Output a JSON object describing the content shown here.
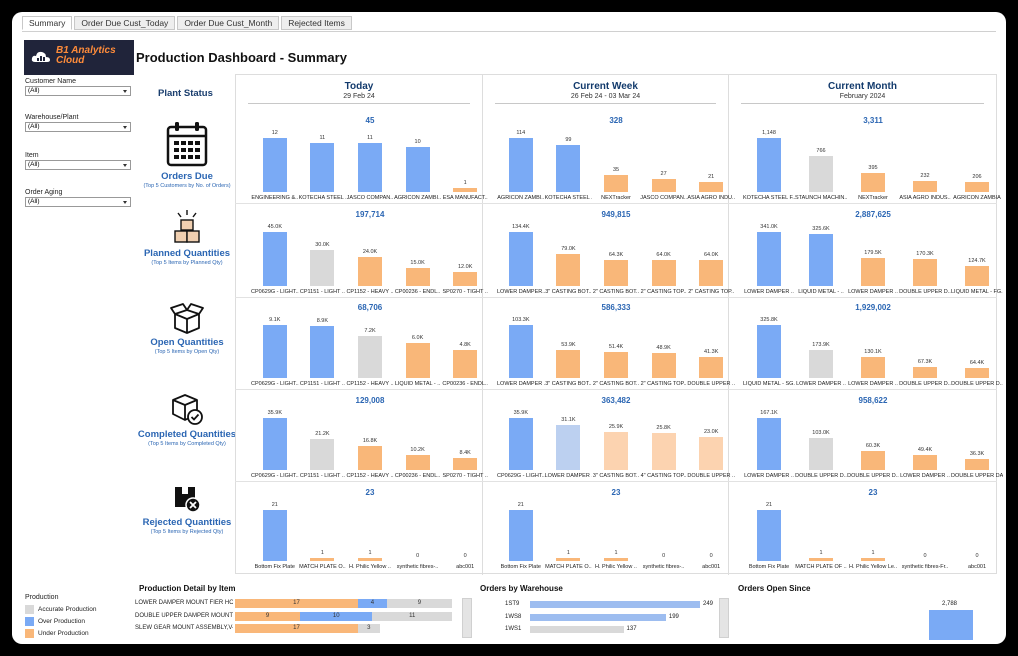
{
  "tabs": [
    "Summary",
    "Order Due Cust_Today",
    "Order Due Cust_Month",
    "Rejected Items"
  ],
  "logo": {
    "line1": "B1 Analytics",
    "line2": "Cloud"
  },
  "title": "Production Dashboard - Summary",
  "filters": [
    {
      "label": "Customer Name",
      "value": "(All)"
    },
    {
      "label": "Warehouse/Plant",
      "value": "(All)"
    },
    {
      "label": "Item",
      "value": "(All)"
    },
    {
      "label": "Order Aging",
      "value": "(All)"
    }
  ],
  "plant_status": "Plant Status",
  "columns": [
    {
      "title": "Today",
      "date": "29 Feb 24"
    },
    {
      "title": "Current Week",
      "date": "26 Feb 24 - 03 Mar 24"
    },
    {
      "title": "Current Month",
      "date": "February 2024"
    }
  ],
  "rows": [
    {
      "icon": "calendar-icon",
      "title": "Orders Due",
      "subtitle": "(Top 5 Customers by No. of Orders)"
    },
    {
      "icon": "boxes-stack-icon",
      "title": "Planned Quantities",
      "subtitle": "(Top 5 Items by Planned Qty)"
    },
    {
      "icon": "open-box-icon",
      "title": "Open Quantities",
      "subtitle": "(Top 5 Items by Open Qty)"
    },
    {
      "icon": "box-check-icon",
      "title": "Completed Quantities",
      "subtitle": "(Top 5 Items by Completed Qty)"
    },
    {
      "icon": "box-reject-icon",
      "title": "Rejected Quantities",
      "subtitle": "(Top 5 Items by Rejected Qty)"
    }
  ],
  "colors": {
    "accurate": "#d9d9d9",
    "over": "#7aaaf5",
    "under": "#f9b779",
    "over_light": "#bcd0f0",
    "under_light": "#fcd3b0",
    "title_blue": "#2b66b3"
  },
  "chart_data": [
    {
      "type": "bar",
      "row": "Orders Due",
      "period": "Today",
      "total": "45",
      "categories": [
        "ENGINEERING &..",
        "KOTECHA STEEL ..",
        "JASCO COMPAN..",
        "AGRICON ZAMBI..",
        "ESA MANUFACT.."
      ],
      "values": [
        12,
        11,
        11,
        10,
        1
      ],
      "labels": [
        "12",
        "11",
        "11",
        "10",
        "1"
      ],
      "status": [
        "over",
        "over",
        "over",
        "over",
        "under"
      ]
    },
    {
      "type": "bar",
      "row": "Orders Due",
      "period": "Current Week",
      "total": "328",
      "categories": [
        "AGRICON ZAMBI..",
        "KOTECHA STEEL ..",
        "NEXTracker",
        "JASCO COMPAN..",
        "ASIA AGRO INDU.."
      ],
      "values": [
        114,
        99,
        35,
        27,
        21
      ],
      "labels": [
        "114",
        "99",
        "35",
        "27",
        "21"
      ],
      "status": [
        "over",
        "over",
        "under",
        "under",
        "under"
      ]
    },
    {
      "type": "bar",
      "row": "Orders Due",
      "period": "Current Month",
      "total": "3,311",
      "categories": [
        "KOTECHA STEEL F..",
        "STAUNCH MACHIN..",
        "NEXTracker",
        "ASIA AGRO INDUS..",
        "AGRICON ZAMBIA"
      ],
      "values": [
        1148,
        766,
        395,
        232,
        206
      ],
      "labels": [
        "1,148",
        "766",
        "395",
        "232",
        "206"
      ],
      "status": [
        "over",
        "accurate",
        "under",
        "under",
        "under"
      ]
    },
    {
      "type": "bar",
      "row": "Planned Quantities",
      "period": "Today",
      "total": "197,714",
      "categories": [
        "CP0629G - LIGHT..",
        "CP1151 - LIGHT ..",
        "CP1152 - HEAVY ..",
        "CP00236 - ENDL..",
        "SP0270 - TIGHT .."
      ],
      "values": [
        45.0,
        30.0,
        24.0,
        15.0,
        12.0
      ],
      "labels": [
        "45.0K",
        "30.0K",
        "24.0K",
        "15.0K",
        "12.0K"
      ],
      "status": [
        "over",
        "accurate",
        "under",
        "under",
        "under"
      ]
    },
    {
      "type": "bar",
      "row": "Planned Quantities",
      "period": "Current Week",
      "total": "949,815",
      "categories": [
        "LOWER DAMPER..",
        "3\" CASTING BOT..",
        "2\" CASTING BOT..",
        "2\" CASTING TOP..",
        "2\" CASTING TOP.."
      ],
      "values": [
        134.4,
        79.0,
        64.3,
        64.0,
        64.0
      ],
      "labels": [
        "134.4K",
        "79.0K",
        "64.3K",
        "64.0K",
        "64.0K"
      ],
      "status": [
        "over",
        "under",
        "under",
        "under",
        "under"
      ]
    },
    {
      "type": "bar",
      "row": "Planned Quantities",
      "period": "Current Month",
      "total": "2,887,625",
      "categories": [
        "LOWER DAMPER ..",
        "LIQUID METAL - ..",
        "LOWER DAMPER ..",
        "DOUBLE UPPER D..",
        "LIQUID METAL - FG.."
      ],
      "values": [
        341.0,
        325.6,
        179.5,
        170.3,
        124.7
      ],
      "labels": [
        "341.0K",
        "325.6K",
        "179.5K",
        "170.3K",
        "124.7K"
      ],
      "status": [
        "over",
        "over",
        "under",
        "under",
        "under"
      ]
    },
    {
      "type": "bar",
      "row": "Open Quantities",
      "period": "Today",
      "total": "68,706",
      "categories": [
        "CP0629G - LIGHT..",
        "CP1151 - LIGHT ..",
        "CP1152 - HEAVY ..",
        "LIQUID METAL - ..",
        "CP00236 - ENDL.."
      ],
      "values": [
        9.1,
        8.9,
        7.2,
        6.0,
        4.8
      ],
      "labels": [
        "9.1K",
        "8.9K",
        "7.2K",
        "6.0K",
        "4.8K"
      ],
      "status": [
        "over",
        "over",
        "accurate",
        "under",
        "under"
      ]
    },
    {
      "type": "bar",
      "row": "Open Quantities",
      "period": "Current Week",
      "total": "586,333",
      "categories": [
        "LOWER DAMPER ..",
        "3\" CASTING BOT..",
        "2\" CASTING BOT..",
        "2\" CASTING TOP..",
        "DOUBLE UPPER .."
      ],
      "values": [
        103.3,
        53.9,
        51.4,
        48.9,
        41.3
      ],
      "labels": [
        "103.3K",
        "53.9K",
        "51.4K",
        "48.9K",
        "41.3K"
      ],
      "status": [
        "over",
        "under",
        "under",
        "under",
        "under"
      ]
    },
    {
      "type": "bar",
      "row": "Open Quantities",
      "period": "Current Month",
      "total": "1,929,002",
      "categories": [
        "LIQUID METAL - SG..",
        "LOWER DAMPER ..",
        "LOWER DAMPER ..",
        "DOUBLE UPPER D..",
        "DOUBLE UPPER D.."
      ],
      "values": [
        325.8,
        173.9,
        130.1,
        67.3,
        64.4
      ],
      "labels": [
        "325.8K",
        "173.9K",
        "130.1K",
        "67.3K",
        "64.4K"
      ],
      "status": [
        "over",
        "accurate",
        "under",
        "under",
        "under"
      ]
    },
    {
      "type": "bar",
      "row": "Completed Quantities",
      "period": "Today",
      "total": "129,008",
      "categories": [
        "CP0629G - LIGHT..",
        "CP1151 - LIGHT ..",
        "CP1152 - HEAVY ..",
        "CP00236 - ENDL..",
        "SP0270 - TIGHT .."
      ],
      "values": [
        35.9,
        21.2,
        16.8,
        10.2,
        8.4
      ],
      "labels": [
        "35.9K",
        "21.2K",
        "16.8K",
        "10.2K",
        "8.4K"
      ],
      "status": [
        "over",
        "accurate",
        "under",
        "under",
        "under"
      ]
    },
    {
      "type": "bar",
      "row": "Completed Quantities",
      "period": "Current Week",
      "total": "363,482",
      "categories": [
        "CP0629G - LIGHT..",
        "LOWER DAMPER ..",
        "3\" CASTING BOT..",
        "4\" CASTING TOP..",
        "DOUBLE UPPER .."
      ],
      "values": [
        35.9,
        31.1,
        25.9,
        25.8,
        23.0
      ],
      "labels": [
        "35.9K",
        "31.1K",
        "25.9K",
        "25.8K",
        "23.0K"
      ],
      "status": [
        "over",
        "over_light",
        "under_light",
        "under_light",
        "under_light"
      ]
    },
    {
      "type": "bar",
      "row": "Completed Quantities",
      "period": "Current Month",
      "total": "958,622",
      "categories": [
        "LOWER DAMPER ..",
        "DOUBLE UPPER D..",
        "DOUBLE UPPER D..",
        "LOWER DAMPER ..",
        "DOUBLE UPPER DA.."
      ],
      "values": [
        167.1,
        103.0,
        60.3,
        49.4,
        36.3
      ],
      "labels": [
        "167.1K",
        "103.0K",
        "60.3K",
        "49.4K",
        "36.3K"
      ],
      "status": [
        "over",
        "accurate",
        "under",
        "under",
        "under"
      ]
    },
    {
      "type": "bar",
      "row": "Rejected Quantities",
      "period": "Today",
      "total": "23",
      "categories": [
        "Bottom Fix Plate",
        "MATCH PLATE O..",
        "H. Philic Yellow ..",
        "synthetic fibres-..",
        "abc001"
      ],
      "values": [
        21,
        1,
        1,
        0,
        0
      ],
      "labels": [
        "21",
        "1",
        "1",
        "0",
        "0"
      ],
      "status": [
        "over",
        "under",
        "under",
        "under",
        "under"
      ]
    },
    {
      "type": "bar",
      "row": "Rejected Quantities",
      "period": "Current Week",
      "total": "23",
      "categories": [
        "Bottom Fix Plate",
        "MATCH PLATE O..",
        "H. Philic Yellow ..",
        "synthetic fibres-..",
        "abc001"
      ],
      "values": [
        21,
        1,
        1,
        0,
        0
      ],
      "labels": [
        "21",
        "1",
        "1",
        "0",
        "0"
      ],
      "status": [
        "over",
        "under",
        "under",
        "under",
        "under"
      ]
    },
    {
      "type": "bar",
      "row": "Rejected Quantities",
      "period": "Current Month",
      "total": "23",
      "categories": [
        "Bottom Fix Plate",
        "MATCH PLATE OF ..",
        "H. Philic Yellow Le..",
        "synthetic fibres-Fr..",
        "abc001"
      ],
      "values": [
        21,
        1,
        1,
        0,
        0
      ],
      "labels": [
        "21",
        "1",
        "1",
        "0",
        "0"
      ],
      "status": [
        "over",
        "under",
        "under",
        "under",
        "under"
      ]
    },
    {
      "type": "bar",
      "title": "Production Detail by Item",
      "orientation": "horizontal",
      "categories": [
        "LOWER DAMPER MOUNT FIER HOL..",
        "DOUBLE UPPER DAMPER MOUNT ..",
        "SLEW GEAR MOUNT ASSEMBLY,V4 .."
      ],
      "series": [
        {
          "name": "Under Production",
          "values": [
            17,
            9,
            17
          ]
        },
        {
          "name": "Over Production",
          "values": [
            4,
            10,
            0
          ]
        },
        {
          "name": "Accurate Production",
          "values": [
            9,
            11,
            3
          ]
        }
      ]
    },
    {
      "type": "bar",
      "title": "Orders by Warehouse",
      "orientation": "horizontal",
      "categories": [
        "1ST9",
        "1WS8",
        "1WS1"
      ],
      "values": [
        249,
        199,
        137
      ]
    },
    {
      "type": "bar",
      "title": "Orders Open Since",
      "values": [
        2788
      ],
      "labels": [
        "2,788"
      ]
    }
  ],
  "legend": {
    "title": "Production",
    "items": [
      "Accurate Production",
      "Over Production",
      "Under Production"
    ]
  }
}
